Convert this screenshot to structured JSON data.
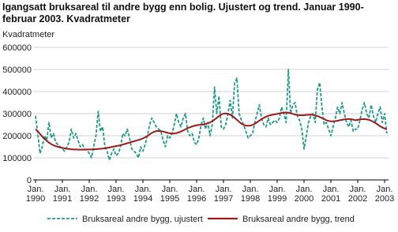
{
  "chart_data": {
    "type": "line",
    "title": "Igangsatt bruksareal til andre bygg enn bolig. Ujustert og trend. Januar 1990-februar 2003. Kvadratmeter",
    "y_label": "Kvadratmeter",
    "categories": [
      "Jan. 1990",
      null,
      null,
      null,
      null,
      null,
      null,
      null,
      null,
      null,
      null,
      null,
      "Jan. 1991",
      null,
      null,
      null,
      null,
      null,
      null,
      null,
      null,
      null,
      null,
      null,
      "Jan. 1992",
      null,
      null,
      null,
      null,
      null,
      null,
      null,
      null,
      null,
      null,
      null,
      "Jan. 1993",
      null,
      null,
      null,
      null,
      null,
      null,
      null,
      null,
      null,
      null,
      null,
      "Jan. 1994",
      null,
      null,
      null,
      null,
      null,
      null,
      null,
      null,
      null,
      null,
      null,
      "Jan. 1995",
      null,
      null,
      null,
      null,
      null,
      null,
      null,
      null,
      null,
      null,
      null,
      "Jan. 1996",
      null,
      null,
      null,
      null,
      null,
      null,
      null,
      null,
      null,
      null,
      null,
      "Jan. 1997",
      null,
      null,
      null,
      null,
      null,
      null,
      null,
      null,
      null,
      null,
      null,
      "Jan. 1998",
      null,
      null,
      null,
      null,
      null,
      null,
      null,
      null,
      null,
      null,
      null,
      "Jan. 1999",
      null,
      null,
      null,
      null,
      null,
      null,
      null,
      null,
      null,
      null,
      null,
      "Jan. 2000",
      null,
      null,
      null,
      null,
      null,
      null,
      null,
      null,
      null,
      null,
      null,
      "Jan. 2001",
      null,
      null,
      null,
      null,
      null,
      null,
      null,
      null,
      null,
      null,
      null,
      "Jan. 2002",
      null,
      null,
      null,
      null,
      null,
      null,
      null,
      null,
      null,
      null,
      null,
      "Jan. 2003",
      null
    ],
    "series": [
      {
        "name": "Bruksareal andre bygg, ujustert",
        "color": "#1f9a8c",
        "dashed": true,
        "values": [
          290000,
          210000,
          120000,
          150000,
          200000,
          180000,
          260000,
          190000,
          210000,
          170000,
          160000,
          150000,
          140000,
          130000,
          150000,
          170000,
          230000,
          190000,
          210000,
          180000,
          150000,
          160000,
          140000,
          135000,
          120000,
          100000,
          150000,
          200000,
          310000,
          220000,
          240000,
          150000,
          130000,
          90000,
          120000,
          140000,
          110000,
          120000,
          150000,
          210000,
          200000,
          230000,
          190000,
          140000,
          130000,
          120000,
          100000,
          150000,
          130000,
          160000,
          200000,
          250000,
          280000,
          260000,
          240000,
          230000,
          220000,
          180000,
          150000,
          200000,
          190000,
          210000,
          250000,
          300000,
          260000,
          240000,
          280000,
          300000,
          220000,
          200000,
          210000,
          170000,
          160000,
          190000,
          250000,
          280000,
          230000,
          260000,
          200000,
          250000,
          420000,
          300000,
          380000,
          240000,
          230000,
          250000,
          300000,
          360000,
          280000,
          440000,
          460000,
          300000,
          270000,
          250000,
          220000,
          190000,
          200000,
          210000,
          260000,
          300000,
          340000,
          280000,
          250000,
          240000,
          280000,
          250000,
          260000,
          270000,
          260000,
          280000,
          330000,
          300000,
          260000,
          500000,
          300000,
          340000,
          350000,
          290000,
          270000,
          230000,
          140000,
          200000,
          260000,
          290000,
          300000,
          260000,
          410000,
          440000,
          330000,
          250000,
          260000,
          230000,
          200000,
          240000,
          280000,
          330000,
          300000,
          350000,
          300000,
          260000,
          240000,
          270000,
          220000,
          230000,
          230000,
          270000,
          320000,
          350000,
          300000,
          280000,
          340000,
          290000,
          260000,
          300000,
          330000,
          260000,
          300000,
          210000
        ]
      },
      {
        "name": "Bruksareal andre bygg, trend",
        "color": "#9e1b1b",
        "dashed": false,
        "values": [
          230000,
          220000,
          208000,
          196000,
          186000,
          177000,
          169000,
          162000,
          157000,
          153000,
          150000,
          147000,
          145000,
          143000,
          141000,
          140000,
          139000,
          138000,
          138000,
          137000,
          137000,
          137000,
          137000,
          138000,
          138000,
          138000,
          139000,
          139000,
          140000,
          141000,
          142000,
          143000,
          145000,
          147000,
          149000,
          151000,
          153000,
          155000,
          157000,
          160000,
          163000,
          166000,
          169000,
          172000,
          175000,
          178000,
          181000,
          184000,
          188000,
          193000,
          199000,
          206000,
          213000,
          218000,
          221000,
          222000,
          221000,
          219000,
          216000,
          213000,
          211000,
          210000,
          210000,
          212000,
          215000,
          219000,
          224000,
          229000,
          234000,
          238000,
          242000,
          245000,
          247000,
          249000,
          250000,
          251000,
          253000,
          256000,
          260000,
          266000,
          273000,
          281000,
          289000,
          296000,
          300000,
          301000,
          299000,
          295000,
          289000,
          281000,
          272000,
          263000,
          255000,
          249000,
          246000,
          245000,
          246000,
          249000,
          254000,
          261000,
          268000,
          275000,
          281000,
          286000,
          290000,
          293000,
          295000,
          297000,
          299000,
          301000,
          303000,
          305000,
          305000,
          304000,
          302000,
          299000,
          296000,
          294000,
          293000,
          293000,
          293000,
          294000,
          295000,
          295000,
          294000,
          292000,
          289000,
          285000,
          280000,
          275000,
          270000,
          267000,
          265000,
          265000,
          266000,
          268000,
          270000,
          272000,
          274000,
          275000,
          276000,
          275000,
          273000,
          270000,
          272000,
          274000,
          275000,
          275000,
          274000,
          272000,
          268000,
          263000,
          257000,
          250000,
          243000,
          237000,
          233000,
          228000
        ]
      }
    ],
    "ylim": [
      0,
      600000
    ],
    "yticks": [
      0,
      100000,
      200000,
      300000,
      400000,
      500000,
      600000
    ],
    "grid": true,
    "legend": "bottom"
  }
}
